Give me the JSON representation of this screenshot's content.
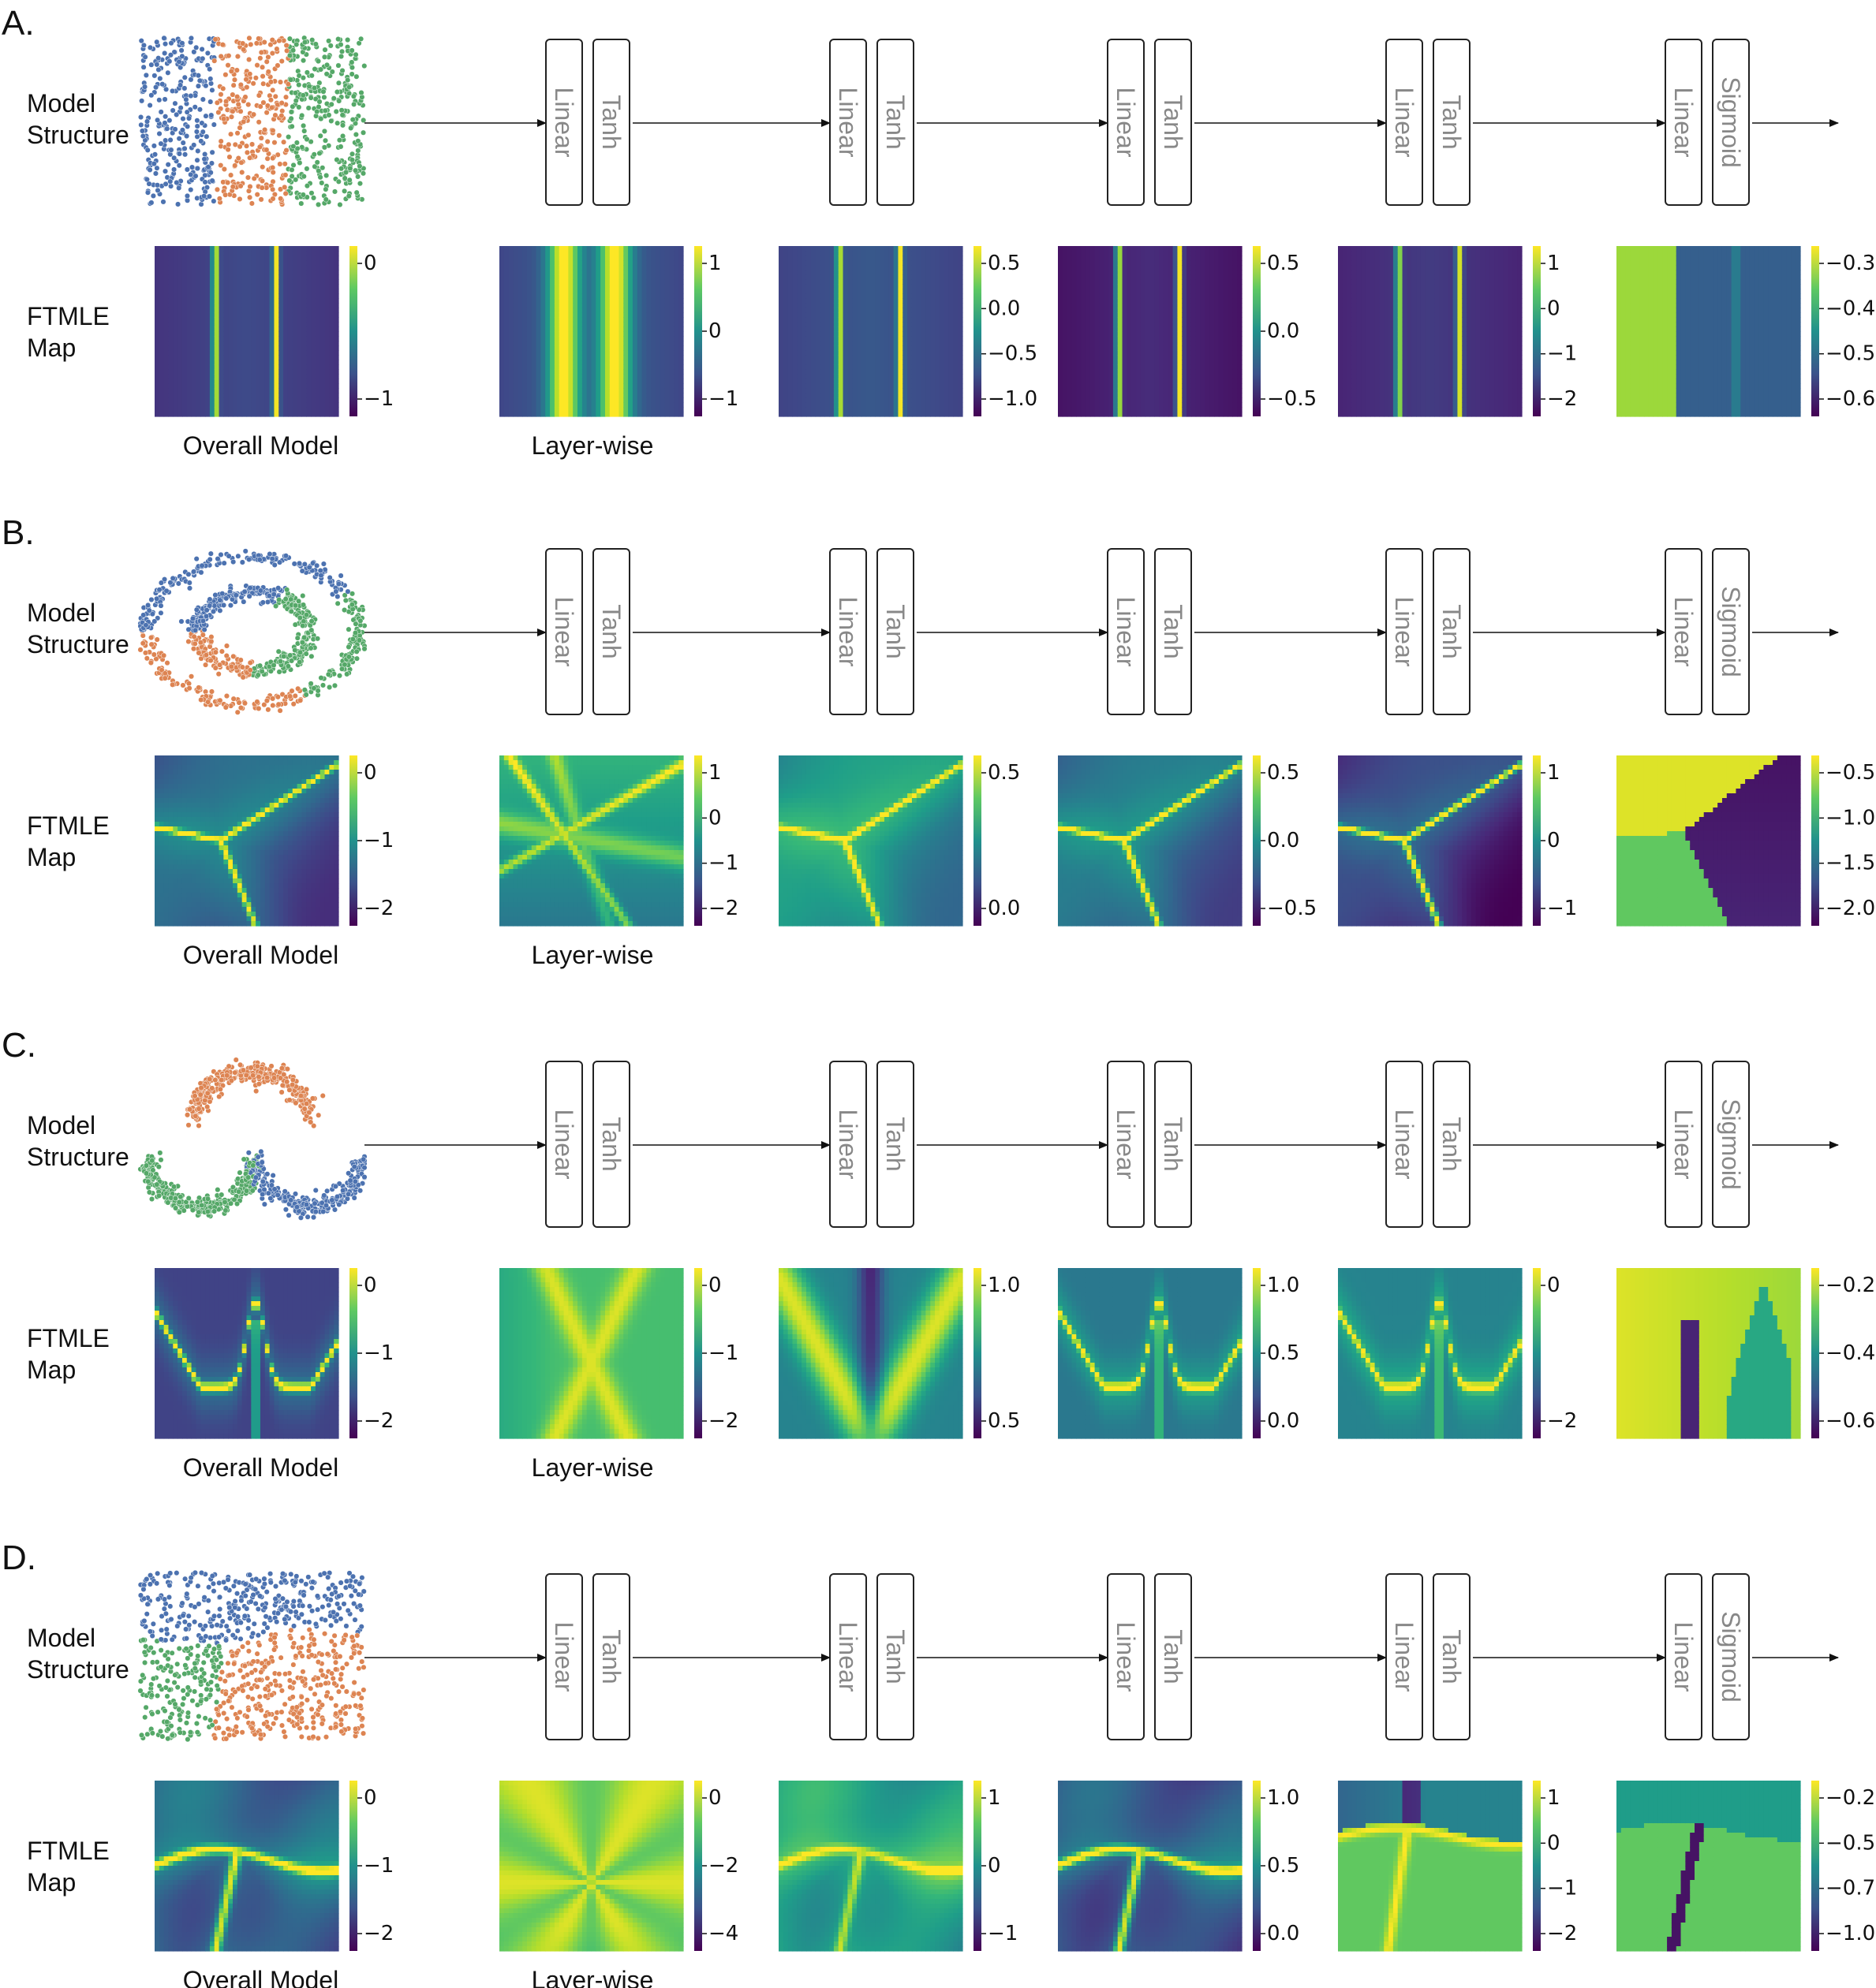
{
  "rows": [
    {
      "letter": "A.",
      "dataset": "blobs3",
      "structure_label": [
        "Model",
        "Structure"
      ],
      "ftmle_label": [
        "FTMLE",
        "Map"
      ],
      "overall_caption": "Overall Model",
      "layerwise_caption": "Layer-wise",
      "layers": [
        [
          "Linear",
          "Tanh"
        ],
        [
          "Linear",
          "Tanh"
        ],
        [
          "Linear",
          "Tanh"
        ],
        [
          "Linear",
          "Tanh"
        ],
        [
          "Linear",
          "Sigmoid"
        ]
      ],
      "maps": [
        {
          "pattern": "v2",
          "base": 0.15,
          "peak": 0.95,
          "colorbar_ticks": [
            "0",
            "−1"
          ]
        },
        {
          "pattern": "v2wide",
          "base": 0.35,
          "peak": 0.95,
          "colorbar_ticks": [
            "1",
            "0",
            "−1"
          ]
        },
        {
          "pattern": "v2",
          "base": 0.2,
          "peak": 0.95,
          "colorbar_ticks": [
            "0.5",
            "0.0",
            "−0.5",
            "−1.0"
          ]
        },
        {
          "pattern": "v2",
          "base": 0.05,
          "peak": 0.95,
          "colorbar_ticks": [
            "0.5",
            "0.0",
            "−0.5"
          ]
        },
        {
          "pattern": "v2",
          "base": 0.1,
          "peak": 0.9,
          "colorbar_ticks": [
            "1",
            "0",
            "−1",
            "−2"
          ]
        },
        {
          "pattern": "step",
          "base": 0.3,
          "peak": 0.85,
          "colorbar_ticks": [
            "−0.3",
            "−0.4",
            "−0.5",
            "−0.6"
          ]
        }
      ]
    },
    {
      "letter": "B.",
      "dataset": "circles",
      "structure_label": [
        "Model",
        "Structure"
      ],
      "ftmle_label": [
        "FTMLE",
        "Map"
      ],
      "overall_caption": "Overall Model",
      "layerwise_caption": "Layer-wise",
      "layers": [
        [
          "Linear",
          "Tanh"
        ],
        [
          "Linear",
          "Tanh"
        ],
        [
          "Linear",
          "Tanh"
        ],
        [
          "Linear",
          "Tanh"
        ],
        [
          "Linear",
          "Sigmoid"
        ]
      ],
      "maps": [
        {
          "pattern": "y",
          "base": 0.25,
          "peak": 0.9,
          "colorbar_ticks": [
            "0",
            "−1",
            "−2"
          ]
        },
        {
          "pattern": "xlines",
          "base": 0.55,
          "peak": 0.95,
          "colorbar_ticks": [
            "1",
            "0",
            "−1",
            "−2"
          ]
        },
        {
          "pattern": "y",
          "base": 0.45,
          "peak": 0.95,
          "colorbar_ticks": [
            "0.5",
            "0.0"
          ]
        },
        {
          "pattern": "y",
          "base": 0.3,
          "peak": 0.95,
          "colorbar_ticks": [
            "0.5",
            "0.0",
            "−0.5"
          ]
        },
        {
          "pattern": "y",
          "base": 0.12,
          "peak": 0.95,
          "colorbar_ticks": [
            "1",
            "0",
            "−1"
          ]
        },
        {
          "pattern": "regions3",
          "base": 0.1,
          "peak": 0.95,
          "colorbar_ticks": [
            "−0.5",
            "−1.0",
            "−1.5",
            "−2.0"
          ]
        }
      ]
    },
    {
      "letter": "C.",
      "dataset": "moons",
      "structure_label": [
        "Model",
        "Structure"
      ],
      "ftmle_label": [
        "FTMLE",
        "Map"
      ],
      "overall_caption": "Overall Model",
      "layerwise_caption": "Layer-wise",
      "layers": [
        [
          "Linear",
          "Tanh"
        ],
        [
          "Linear",
          "Tanh"
        ],
        [
          "Linear",
          "Tanh"
        ],
        [
          "Linear",
          "Tanh"
        ],
        [
          "Linear",
          "Sigmoid"
        ]
      ],
      "maps": [
        {
          "pattern": "w",
          "base": 0.2,
          "peak": 0.95,
          "colorbar_ticks": [
            "0",
            "−1",
            "−2"
          ]
        },
        {
          "pattern": "xwide",
          "base": 0.7,
          "peak": 0.95,
          "colorbar_ticks": [
            "0",
            "−1",
            "−2"
          ]
        },
        {
          "pattern": "vfan",
          "base": 0.45,
          "peak": 0.95,
          "colorbar_ticks": [
            "1.0",
            "0.5"
          ]
        },
        {
          "pattern": "w",
          "base": 0.4,
          "peak": 0.95,
          "colorbar_ticks": [
            "1.0",
            "0.5",
            "0.0"
          ]
        },
        {
          "pattern": "w",
          "base": 0.45,
          "peak": 0.95,
          "colorbar_ticks": [
            "0",
            "−2"
          ]
        },
        {
          "pattern": "wsig",
          "base": 0.8,
          "peak": 0.95,
          "colorbar_ticks": [
            "−0.2",
            "−0.4",
            "−0.6"
          ]
        }
      ]
    },
    {
      "letter": "D.",
      "dataset": "quadrants",
      "structure_label": [
        "Model",
        "Structure"
      ],
      "ftmle_label": [
        "FTMLE",
        "Map"
      ],
      "overall_caption": "Overall Model",
      "layerwise_caption": "Layer-wise",
      "layers": [
        [
          "Linear",
          "Tanh"
        ],
        [
          "Linear",
          "Tanh"
        ],
        [
          "Linear",
          "Tanh"
        ],
        [
          "Linear",
          "Tanh"
        ],
        [
          "Linear",
          "Sigmoid"
        ]
      ],
      "maps": [
        {
          "pattern": "t",
          "base": 0.3,
          "peak": 0.95,
          "colorbar_ticks": [
            "0",
            "−1",
            "−2"
          ]
        },
        {
          "pattern": "star",
          "base": 0.75,
          "peak": 0.95,
          "colorbar_ticks": [
            "0",
            "−2",
            "−4"
          ]
        },
        {
          "pattern": "t",
          "base": 0.55,
          "peak": 0.9,
          "colorbar_ticks": [
            "1",
            "0",
            "−1"
          ]
        },
        {
          "pattern": "t",
          "base": 0.25,
          "peak": 0.95,
          "colorbar_ticks": [
            "1.0",
            "0.5",
            "0.0"
          ]
        },
        {
          "pattern": "tsig",
          "base": 0.6,
          "peak": 0.95,
          "colorbar_ticks": [
            "1",
            "0",
            "−1",
            "−2"
          ]
        },
        {
          "pattern": "tsig2",
          "base": 0.6,
          "peak": 0.95,
          "colorbar_ticks": [
            "−0.2",
            "−0.5",
            "−0.7",
            "−1.0"
          ]
        }
      ]
    }
  ]
}
